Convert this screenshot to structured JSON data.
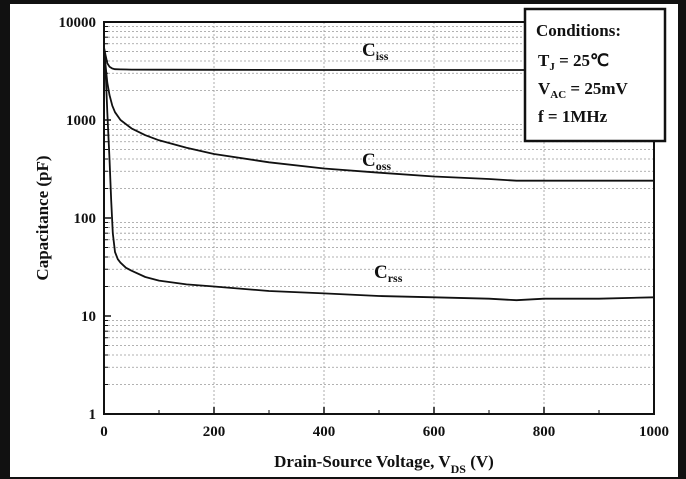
{
  "chart_data": {
    "type": "line",
    "xlabel": "Drain-Source Voltage, V",
    "xlabel_sub": "DS",
    "xlabel_unit": " (V)",
    "ylabel": "Capacitance (pF)",
    "x_ticks": [
      "0",
      "200",
      "400",
      "600",
      "800",
      "1000"
    ],
    "y_ticks": [
      "1",
      "10",
      "100",
      "1000",
      "10000"
    ],
    "xlim": [
      0,
      1000
    ],
    "ylim": [
      1,
      10000
    ],
    "y_scale": "log",
    "grid": true,
    "series": [
      {
        "name": "C",
        "name_sub": "iss",
        "x": [
          0,
          3,
          6,
          10,
          15,
          20,
          30,
          50,
          100,
          200,
          400,
          600,
          800,
          1000
        ],
        "y": [
          5500,
          4500,
          3800,
          3500,
          3350,
          3300,
          3280,
          3270,
          3260,
          3250,
          3240,
          3240,
          3240,
          3240
        ]
      },
      {
        "name": "C",
        "name_sub": "oss",
        "x": [
          0,
          3,
          6,
          10,
          15,
          20,
          30,
          50,
          75,
          100,
          150,
          200,
          300,
          400,
          500,
          600,
          700,
          750,
          800,
          900,
          1000
        ],
        "y": [
          5000,
          3500,
          2400,
          1800,
          1400,
          1200,
          1000,
          820,
          700,
          620,
          520,
          450,
          370,
          320,
          290,
          265,
          250,
          240,
          240,
          240,
          240
        ]
      },
      {
        "name": "C",
        "name_sub": "rss",
        "x": [
          0,
          3,
          6,
          10,
          13,
          16,
          20,
          25,
          30,
          40,
          50,
          75,
          100,
          150,
          200,
          300,
          400,
          500,
          600,
          700,
          750,
          800,
          900,
          1000
        ],
        "y": [
          5500,
          3000,
          1200,
          400,
          150,
          70,
          45,
          38,
          35,
          31,
          29,
          25,
          23,
          21,
          20,
          18,
          17,
          16,
          15.5,
          15,
          14.5,
          15,
          15,
          15.5
        ]
      }
    ],
    "conditions": {
      "title": "Conditions:",
      "lines": [
        {
          "main": "T",
          "sub": "J",
          "rest": " = 25℃"
        },
        {
          "main": "V",
          "sub": "AC",
          "rest": " = 25mV"
        },
        {
          "main": "f",
          "sub": "",
          "rest": "  =  1MHz"
        }
      ]
    }
  }
}
